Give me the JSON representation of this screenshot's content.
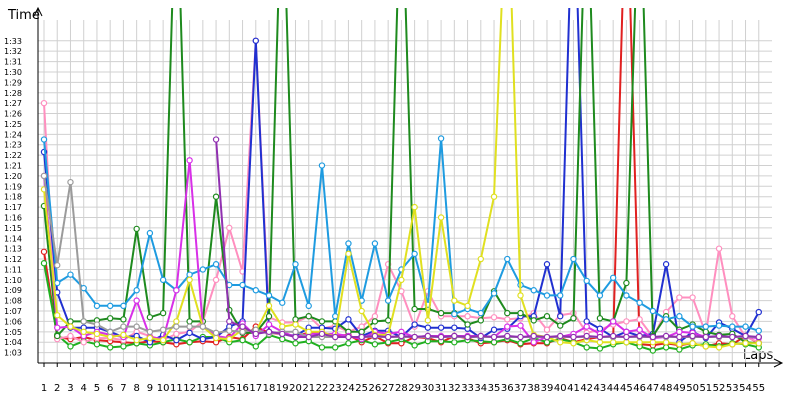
{
  "chart_data": {
    "type": "line",
    "title": "",
    "ylabel": "Time",
    "xlabel": "Laps",
    "grid": true,
    "legend": "none",
    "x_categories": [
      "1",
      "2",
      "3",
      "4",
      "5",
      "6",
      "7",
      "8",
      "9",
      "10",
      "11",
      "12",
      "13",
      "14",
      "15",
      "16",
      "17",
      "18",
      "19",
      "20",
      "21",
      "22",
      "23",
      "24",
      "25",
      "26",
      "27",
      "28",
      "29",
      "30",
      "31",
      "32",
      "33",
      "34",
      "35",
      "36",
      "37",
      "38",
      "39",
      "40",
      "41",
      "42",
      "43",
      "44",
      "45",
      "46",
      "47",
      "48",
      "49",
      "50",
      "51",
      "52",
      "53",
      "54",
      "55"
    ],
    "y_ticks_seconds": [
      63,
      64,
      65,
      66,
      67,
      68,
      69,
      70,
      71,
      72,
      73,
      74,
      75,
      76,
      77,
      78,
      79,
      80,
      81,
      82,
      83,
      84,
      85,
      86,
      87,
      88,
      89,
      90,
      91,
      92,
      93
    ],
    "y_tick_labels": [
      "1:03",
      "1:04",
      "1:05",
      "1:06",
      "1:07",
      "1:08",
      "1:09",
      "1:10",
      "1:11",
      "1:12",
      "1:13",
      "1:14",
      "1:15",
      "1:16",
      "1:17",
      "1:18",
      "1:19",
      "1:20",
      "1:21",
      "1:22",
      "1:23",
      "1:24",
      "1:25",
      "1:26",
      "1:27",
      "1:28",
      "1:29",
      "1:30",
      "1:31",
      "1:32",
      "1:33"
    ],
    "ylim_seconds": [
      62,
      95
    ],
    "series": [
      {
        "color": "#e02020",
        "values": [
          72.7,
          64.5,
          64.3,
          64.5,
          64.2,
          64.1,
          64.0,
          63.9,
          64.1,
          64.0,
          63.8,
          64.0,
          64.1,
          64.0,
          64.5,
          64.3,
          65.5,
          64.9,
          64.8,
          64.6,
          64.9,
          64.8,
          64.6,
          64.7,
          64.0,
          64.6,
          63.9,
          63.9,
          64.5,
          64.4,
          64.0,
          64.6,
          64.4,
          63.9,
          64.0,
          64.2,
          63.8,
          63.9,
          63.9,
          64.4,
          64.0,
          64.3,
          64.5,
          64.5,
          110,
          63.8,
          63.7,
          63.9,
          63.7,
          63.9,
          63.6,
          63.9,
          63.8,
          64.6,
          63.9
        ]
      },
      {
        "color": "#20b020",
        "values": [
          71.6,
          64.7,
          63.6,
          64.1,
          63.8,
          63.5,
          63.6,
          63.9,
          63.7,
          64.0,
          64.3,
          64.0,
          64.5,
          64.5,
          64.0,
          64.2,
          63.6,
          64.7,
          64.3,
          63.9,
          64.1,
          63.5,
          63.5,
          63.9,
          64.2,
          63.8,
          64.0,
          64.3,
          63.7,
          64.1,
          64.1,
          64.0,
          64.2,
          64.1,
          64.0,
          64.3,
          63.9,
          64.4,
          64.0,
          64.3,
          64.0,
          63.5,
          63.4,
          63.8,
          64.0,
          63.6,
          63.2,
          63.5,
          63.3,
          63.7,
          63.8,
          63.6,
          63.9,
          63.8,
          63.5
        ]
      },
      {
        "color": "#ff8fbf",
        "values": [
          87.0,
          64.3,
          64.6,
          64.0,
          64.4,
          64.4,
          64.2,
          65.0,
          64.6,
          64.2,
          64.8,
          65.0,
          66.0,
          70.0,
          75.0,
          70.8,
          93.0,
          66.4,
          65.9,
          65.9,
          66.5,
          65.3,
          65.6,
          65.0,
          65.5,
          66.5,
          71.5,
          68.9,
          65.5,
          68.9,
          66.5,
          66.5,
          66.5,
          66.3,
          66.4,
          66.2,
          66.3,
          66.8,
          65.2,
          66.6,
          66.8,
          64.9,
          65.2,
          65.7,
          66.0,
          66.2,
          64.5,
          66.9,
          68.3,
          68.3,
          64.8,
          73.0,
          66.5,
          64.5,
          64.0
        ]
      },
      {
        "color": "#2030d0",
        "values": [
          82.3,
          68.8,
          65.4,
          65.4,
          65.4,
          65.0,
          64.5,
          64.6,
          64.0,
          64.7,
          64.2,
          64.9,
          64.3,
          64.5,
          65.5,
          66.0,
          93.0,
          65.0,
          64.8,
          64.6,
          65.4,
          65.4,
          65.3,
          66.2,
          64.6,
          65.1,
          65.1,
          64.5,
          65.7,
          65.4,
          65.4,
          65.4,
          65.3,
          64.4,
          65.2,
          65.3,
          66.5,
          66.5,
          71.5,
          66.5,
          110,
          66.0,
          65.3,
          64.5,
          65.0,
          64.6,
          64.8,
          71.5,
          64.0,
          65.0,
          64.4,
          65.9,
          65.3,
          64.6,
          66.9
        ]
      },
      {
        "color": "#1e8a1e",
        "values": [
          77.1,
          64.6,
          66.0,
          66.0,
          66.1,
          66.3,
          66.2,
          74.9,
          66.4,
          66.8,
          110,
          66.0,
          66.0,
          78.0,
          67.1,
          64.9,
          64.9,
          66.5,
          110,
          66.2,
          66.5,
          66.0,
          66.0,
          65.0,
          65.0,
          66.0,
          66.1,
          110,
          67.2,
          67.2,
          66.8,
          66.8,
          65.7,
          66.1,
          68.9,
          66.8,
          66.8,
          66.1,
          66.5,
          65.6,
          66.3,
          110,
          66.3,
          66.0,
          69.7,
          110,
          64.6,
          66.5,
          65.2,
          65.7,
          65.0,
          64.7,
          64.8,
          64.0,
          63.9
        ]
      },
      {
        "color": "#1e9be0",
        "values": [
          83.5,
          69.7,
          70.5,
          69.2,
          67.5,
          67.5,
          67.5,
          69.0,
          74.5,
          70.0,
          69.0,
          70.5,
          71.0,
          71.5,
          69.5,
          69.5,
          69.0,
          68.5,
          67.8,
          71.5,
          67.5,
          81.0,
          66.5,
          73.5,
          68.0,
          73.5,
          68.0,
          71.0,
          72.5,
          67.6,
          83.6,
          66.7,
          67.2,
          66.8,
          68.7,
          72.0,
          69.5,
          69.0,
          68.5,
          68.5,
          72.0,
          69.9,
          68.5,
          70.2,
          68.5,
          67.8,
          67.0,
          66.2,
          66.5,
          65.5,
          65.5,
          65.6,
          65.5,
          65.5,
          65.1
        ]
      },
      {
        "color": "#d830e8",
        "values": [
          80.0,
          65.4,
          65.5,
          64.6,
          65.0,
          64.7,
          64.5,
          68.0,
          64.5,
          64.3,
          69.0,
          81.5,
          65.5,
          64.6,
          64.4,
          65.8,
          64.6,
          65.7,
          65.0,
          64.5,
          64.8,
          64.8,
          64.8,
          64.6,
          64.3,
          65.0,
          64.8,
          65.0,
          64.5,
          64.6,
          64.6,
          64.6,
          64.6,
          64.6,
          64.5,
          65.5,
          65.6,
          64.0,
          64.5,
          64.5,
          64.8,
          65.5,
          64.8,
          66.0,
          65.0,
          65.2,
          64.4,
          64.5,
          65.0,
          64.9,
          64.5,
          64.5,
          64.5,
          64.5,
          64.4
        ]
      },
      {
        "color": "#e0e020",
        "values": [
          78.7,
          66.6,
          65.5,
          65.0,
          64.8,
          64.5,
          64.7,
          64.2,
          64.4,
          64.2,
          66.0,
          70.0,
          65.5,
          64.4,
          64.3,
          65.2,
          65.0,
          67.5,
          65.5,
          65.7,
          65.0,
          65.0,
          64.5,
          72.5,
          67.0,
          64.7,
          64.7,
          70.0,
          77.0,
          66.1,
          76.0,
          68.0,
          67.5,
          72.0,
          78.0,
          110,
          68.5,
          64.7,
          64.5,
          64.0,
          63.9,
          64.2,
          64.0,
          64.0,
          64.0,
          64.0,
          64.0,
          64.0,
          63.8,
          63.9,
          63.6,
          63.5,
          63.8,
          63.9,
          63.9
        ]
      },
      {
        "color": "#9b9b9b",
        "values": [
          80.0,
          71.4,
          79.4,
          66.0,
          65.7,
          65.0,
          65.5,
          65.5,
          65.0,
          65.2,
          65.5,
          65.5,
          65.5,
          64.9,
          65.1,
          65.0,
          65.2,
          64.8,
          65.0,
          65.0,
          64.5,
          64.5,
          64.5,
          64.5,
          64.5,
          64.5,
          64.5,
          64.5,
          64.5,
          64.5,
          64.5,
          64.5,
          64.5,
          64.5,
          64.5,
          64.5,
          64.5,
          64.5,
          64.5,
          64.5,
          64.5,
          64.5,
          64.5,
          64.5,
          64.5,
          64.5,
          64.5,
          64.5,
          64.5,
          64.5,
          64.5,
          64.5,
          64.5,
          64.5,
          64.5
        ]
      },
      {
        "color": "#9030b0",
        "values": [
          null,
          null,
          null,
          null,
          null,
          null,
          null,
          null,
          null,
          null,
          null,
          null,
          null,
          83.5,
          66.0,
          65.5,
          64.8,
          65.0,
          64.8,
          64.5,
          64.5,
          64.8,
          64.5,
          64.5,
          64.5,
          64.6,
          64.5,
          64.6,
          64.5,
          64.6,
          64.5,
          64.6,
          64.5,
          64.6,
          64.5,
          64.6,
          64.5,
          64.6,
          64.5,
          64.6,
          64.5,
          64.6,
          64.5,
          64.6,
          64.5,
          64.6,
          64.5,
          64.6,
          64.5,
          64.6,
          64.5,
          64.6,
          64.5,
          64.6,
          64.5
        ]
      }
    ]
  }
}
